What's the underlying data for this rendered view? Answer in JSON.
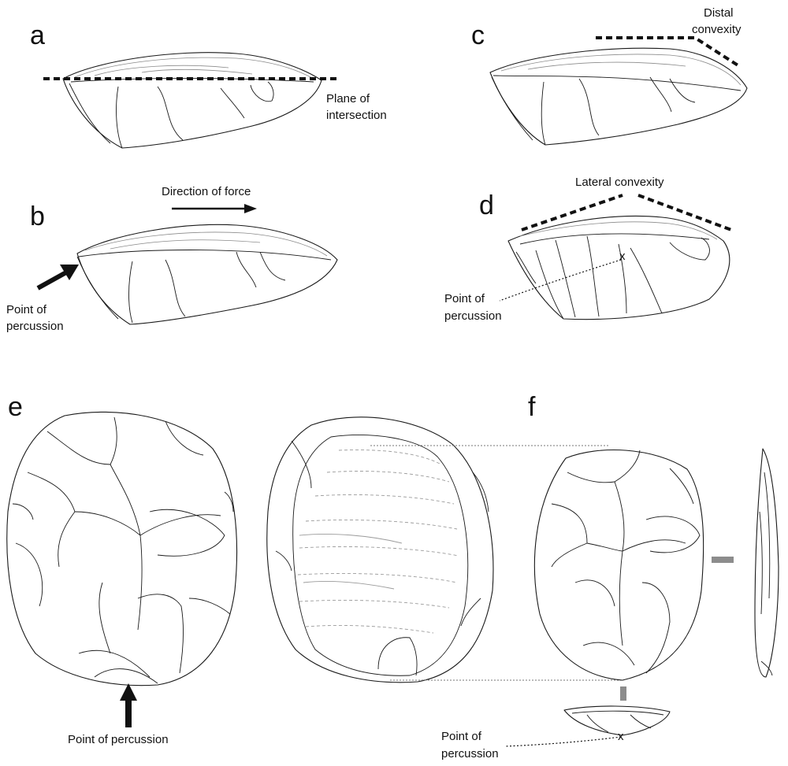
{
  "panels": {
    "a": {
      "letter": "a",
      "plane_label_1": "Plane of",
      "plane_label_2": "intersection"
    },
    "b": {
      "letter": "b",
      "force_label": "Direction of force",
      "point_label_1": "Point of",
      "point_label_2": "percussion"
    },
    "c": {
      "letter": "c",
      "distal_label_1": "Distal",
      "distal_label_2": "convexity"
    },
    "d": {
      "letter": "d",
      "lateral_label": "Lateral convexity",
      "marker": "x",
      "point_label_1": "Point of",
      "point_label_2": "percussion"
    },
    "e": {
      "letter": "e",
      "point_label": "Point of percussion"
    },
    "f": {
      "letter": "f",
      "marker": "x",
      "point_label_1": "Point of",
      "point_label_2": "percussion"
    }
  },
  "colors": {
    "line": "#1a1a1a",
    "cortex": "#8a8a8a",
    "section_bar": "#8c8c8c"
  }
}
